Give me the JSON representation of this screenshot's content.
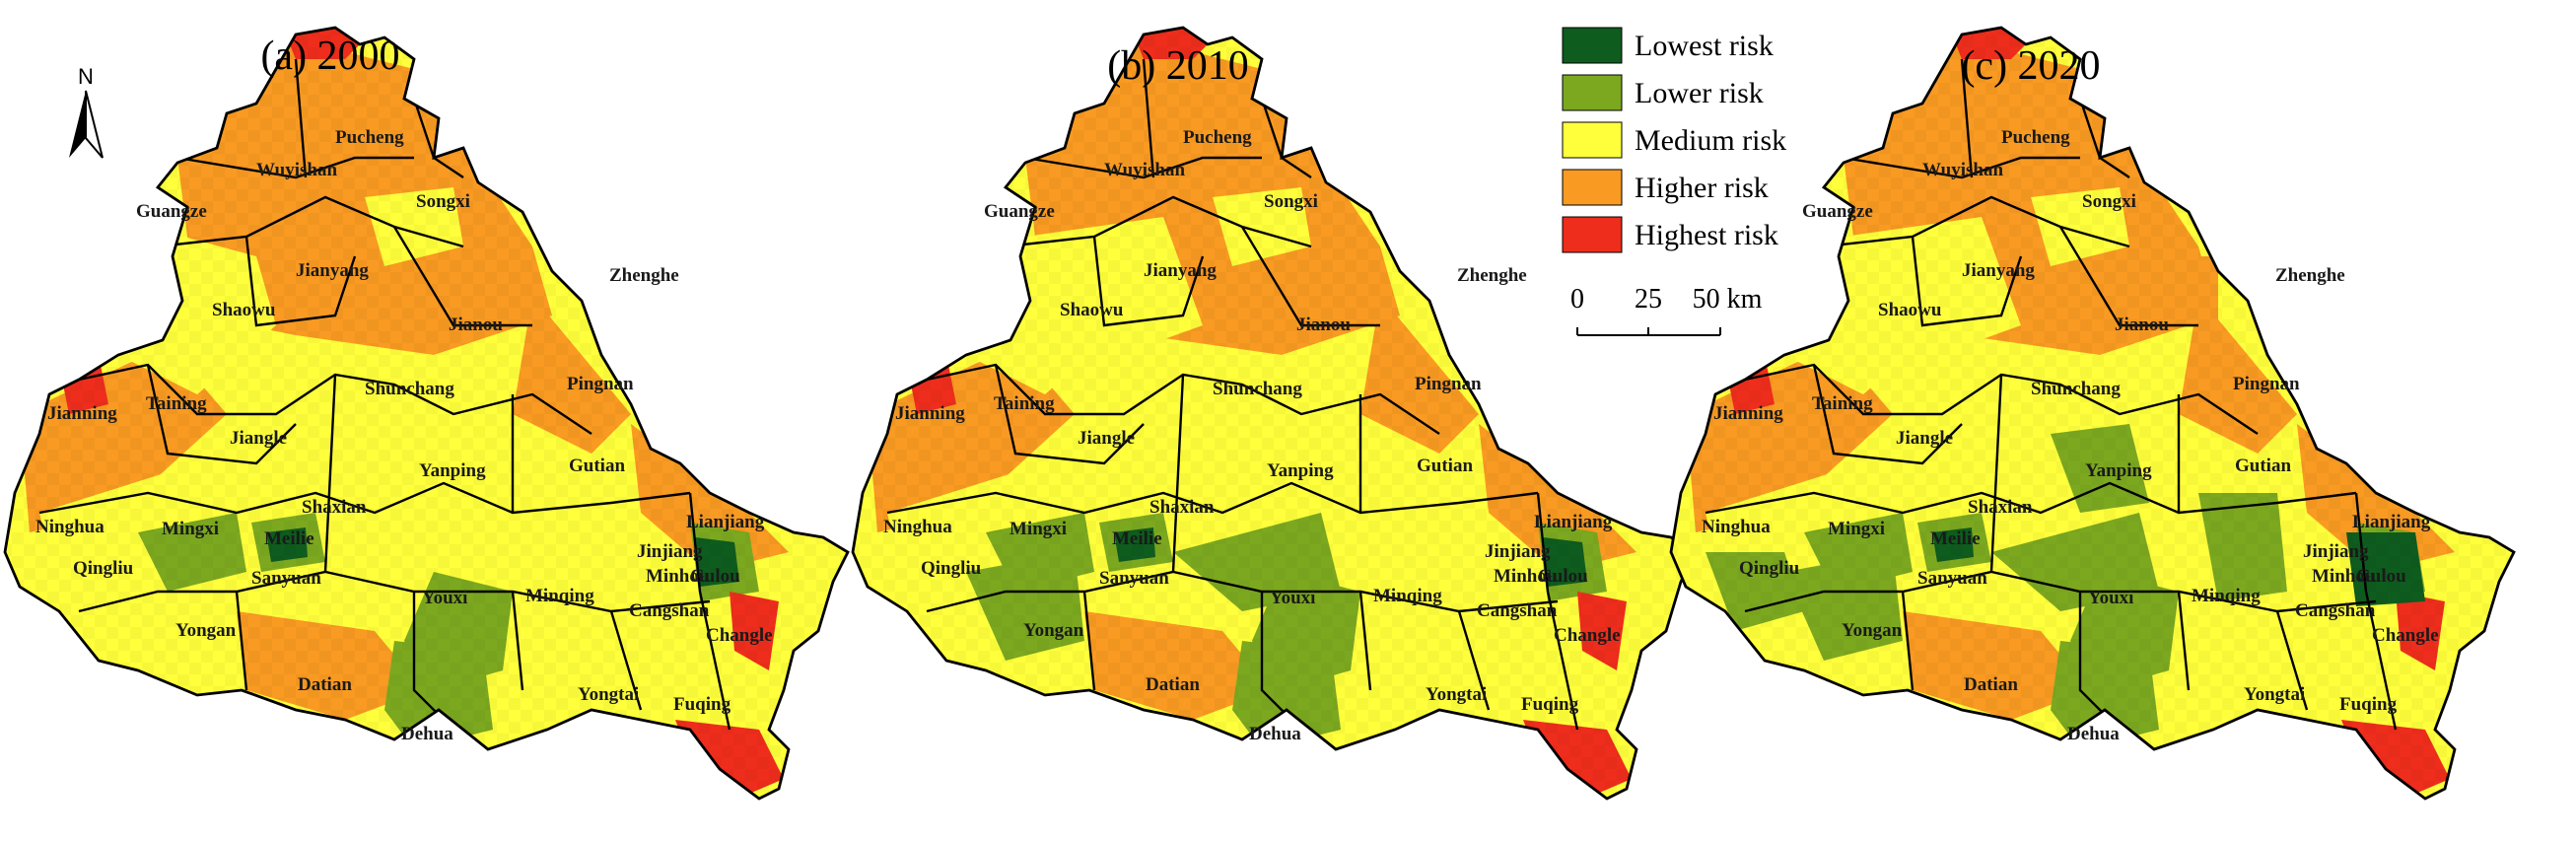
{
  "colors": {
    "lowest": "#0e5c1e",
    "lower": "#7ca820",
    "medium": "#ffff3c",
    "higher": "#f99a22",
    "highest": "#ee2d1c",
    "boundary": "#000000"
  },
  "north_arrow": {
    "label": "N"
  },
  "legend": {
    "items": [
      {
        "label": "Lowest risk",
        "color": "#0e5c1e"
      },
      {
        "label": "Lower risk",
        "color": "#7ca820"
      },
      {
        "label": "Medium risk",
        "color": "#ffff3c"
      },
      {
        "label": "Higher risk",
        "color": "#f99a22"
      },
      {
        "label": "Highest risk",
        "color": "#ee2d1c"
      }
    ]
  },
  "scale_bar": {
    "ticks": [
      "0",
      "25",
      "50 km"
    ]
  },
  "panels": [
    {
      "title": "(a) 2000"
    },
    {
      "title": "(b) 2010"
    },
    {
      "title": "(c) 2020"
    }
  ],
  "counties": [
    "Pucheng",
    "Wuyishan",
    "Guangze",
    "Songxi",
    "Jianyang",
    "Zhenghe",
    "Shaowu",
    "Jianou",
    "Taining",
    "Shunchang",
    "Pingnan",
    "Jianning",
    "Jiangle",
    "Gutian",
    "Yanping",
    "Shaxian",
    "Ninghua",
    "Mingxi",
    "Meilie",
    "Lianjiang",
    "Jinjiang",
    "Minhou",
    "Qingliu",
    "Sanyuan",
    "Youxi",
    "Minqing",
    "Gulou",
    "Cangshan",
    "Changle",
    "Yongan",
    "Datian",
    "Yongtai",
    "Dehua",
    "Fuqing"
  ]
}
